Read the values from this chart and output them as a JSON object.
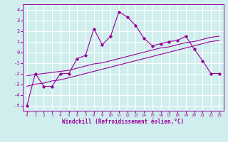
{
  "title": "",
  "xlabel": "Windchill (Refroidissement éolien,°C)",
  "bg_color": "#d0eeee",
  "grid_color": "#ffffff",
  "line_color": "#990099",
  "x_data": [
    0,
    1,
    2,
    3,
    4,
    5,
    6,
    7,
    8,
    9,
    10,
    11,
    12,
    13,
    14,
    15,
    16,
    17,
    18,
    19,
    20,
    21,
    22,
    23
  ],
  "y_main": [
    -5.0,
    -2.0,
    -3.2,
    -3.2,
    -2.0,
    -2.0,
    -0.6,
    -0.3,
    2.2,
    0.7,
    1.5,
    3.8,
    3.3,
    2.5,
    1.3,
    0.6,
    0.8,
    1.0,
    1.1,
    1.5,
    0.3,
    -0.8,
    -2.0,
    -2.0
  ],
  "y_reg1": [
    -2.2,
    -2.1,
    -2.0,
    -1.9,
    -1.8,
    -1.7,
    -1.5,
    -1.3,
    -1.1,
    -1.0,
    -0.8,
    -0.6,
    -0.4,
    -0.2,
    0.0,
    0.2,
    0.4,
    0.5,
    0.7,
    0.9,
    1.0,
    1.2,
    1.4,
    1.5
  ],
  "y_reg2": [
    -3.2,
    -3.0,
    -2.9,
    -2.7,
    -2.6,
    -2.4,
    -2.2,
    -2.0,
    -1.8,
    -1.6,
    -1.4,
    -1.2,
    -1.0,
    -0.8,
    -0.6,
    -0.4,
    -0.2,
    0.0,
    0.2,
    0.4,
    0.6,
    0.8,
    1.0,
    1.1
  ],
  "ylim": [
    -5.5,
    4.5
  ],
  "xlim": [
    -0.5,
    23.5
  ],
  "yticks": [
    -5,
    -4,
    -3,
    -2,
    -1,
    0,
    1,
    2,
    3,
    4
  ]
}
